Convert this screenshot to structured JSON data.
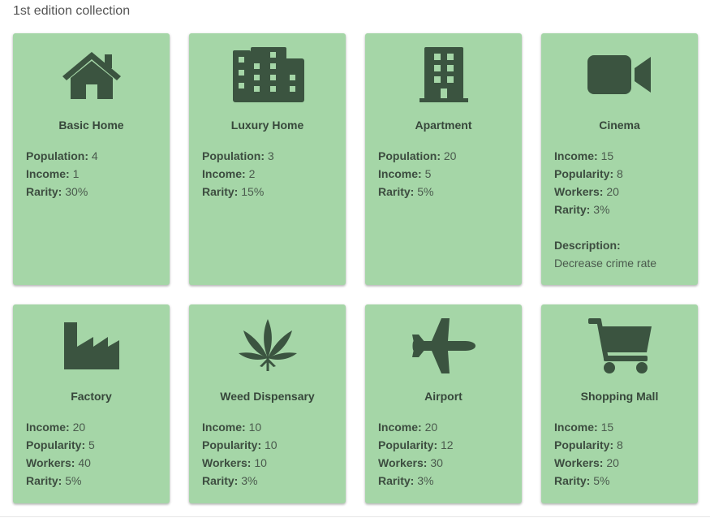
{
  "page": {
    "title": "1st edition collection"
  },
  "colors": {
    "card_bg": "#a5d6a7",
    "icon": "#3b5440",
    "text": "#3d4d40"
  },
  "cards": [
    {
      "name": "Basic Home",
      "icon": "home-icon",
      "stats": [
        {
          "label": "Population:",
          "value": "4"
        },
        {
          "label": "Income:",
          "value": "1"
        },
        {
          "label": "Rarity:",
          "value": "30%"
        }
      ]
    },
    {
      "name": "Luxury Home",
      "icon": "city-icon",
      "stats": [
        {
          "label": "Population:",
          "value": "3"
        },
        {
          "label": "Income:",
          "value": "2"
        },
        {
          "label": "Rarity:",
          "value": "15%"
        }
      ]
    },
    {
      "name": "Apartment",
      "icon": "building-icon",
      "stats": [
        {
          "label": "Population:",
          "value": "20"
        },
        {
          "label": "Income:",
          "value": "5"
        },
        {
          "label": "Rarity:",
          "value": "5%"
        }
      ]
    },
    {
      "name": "Cinema",
      "icon": "video-camera-icon",
      "stats": [
        {
          "label": "Income:",
          "value": "15"
        },
        {
          "label": "Popularity:",
          "value": "8"
        },
        {
          "label": "Workers:",
          "value": "20"
        },
        {
          "label": "Rarity:",
          "value": "3%"
        }
      ],
      "description_label": "Description:",
      "description": "Decrease crime rate"
    },
    {
      "name": "Factory",
      "icon": "factory-icon",
      "stats": [
        {
          "label": "Income:",
          "value": "20"
        },
        {
          "label": "Popularity:",
          "value": "5"
        },
        {
          "label": "Workers:",
          "value": "40"
        },
        {
          "label": "Rarity:",
          "value": "5%"
        }
      ]
    },
    {
      "name": "Weed Dispensary",
      "icon": "cannabis-leaf-icon",
      "stats": [
        {
          "label": "Income:",
          "value": "10"
        },
        {
          "label": "Popularity:",
          "value": "10"
        },
        {
          "label": "Workers:",
          "value": "10"
        },
        {
          "label": "Rarity:",
          "value": "3%"
        }
      ]
    },
    {
      "name": "Airport",
      "icon": "airplane-icon",
      "stats": [
        {
          "label": "Income:",
          "value": "20"
        },
        {
          "label": "Popularity:",
          "value": "12"
        },
        {
          "label": "Workers:",
          "value": "30"
        },
        {
          "label": "Rarity:",
          "value": "3%"
        }
      ]
    },
    {
      "name": "Shopping Mall",
      "icon": "shopping-cart-icon",
      "stats": [
        {
          "label": "Income:",
          "value": "15"
        },
        {
          "label": "Popularity:",
          "value": "8"
        },
        {
          "label": "Workers:",
          "value": "20"
        },
        {
          "label": "Rarity:",
          "value": "5%"
        }
      ]
    }
  ]
}
